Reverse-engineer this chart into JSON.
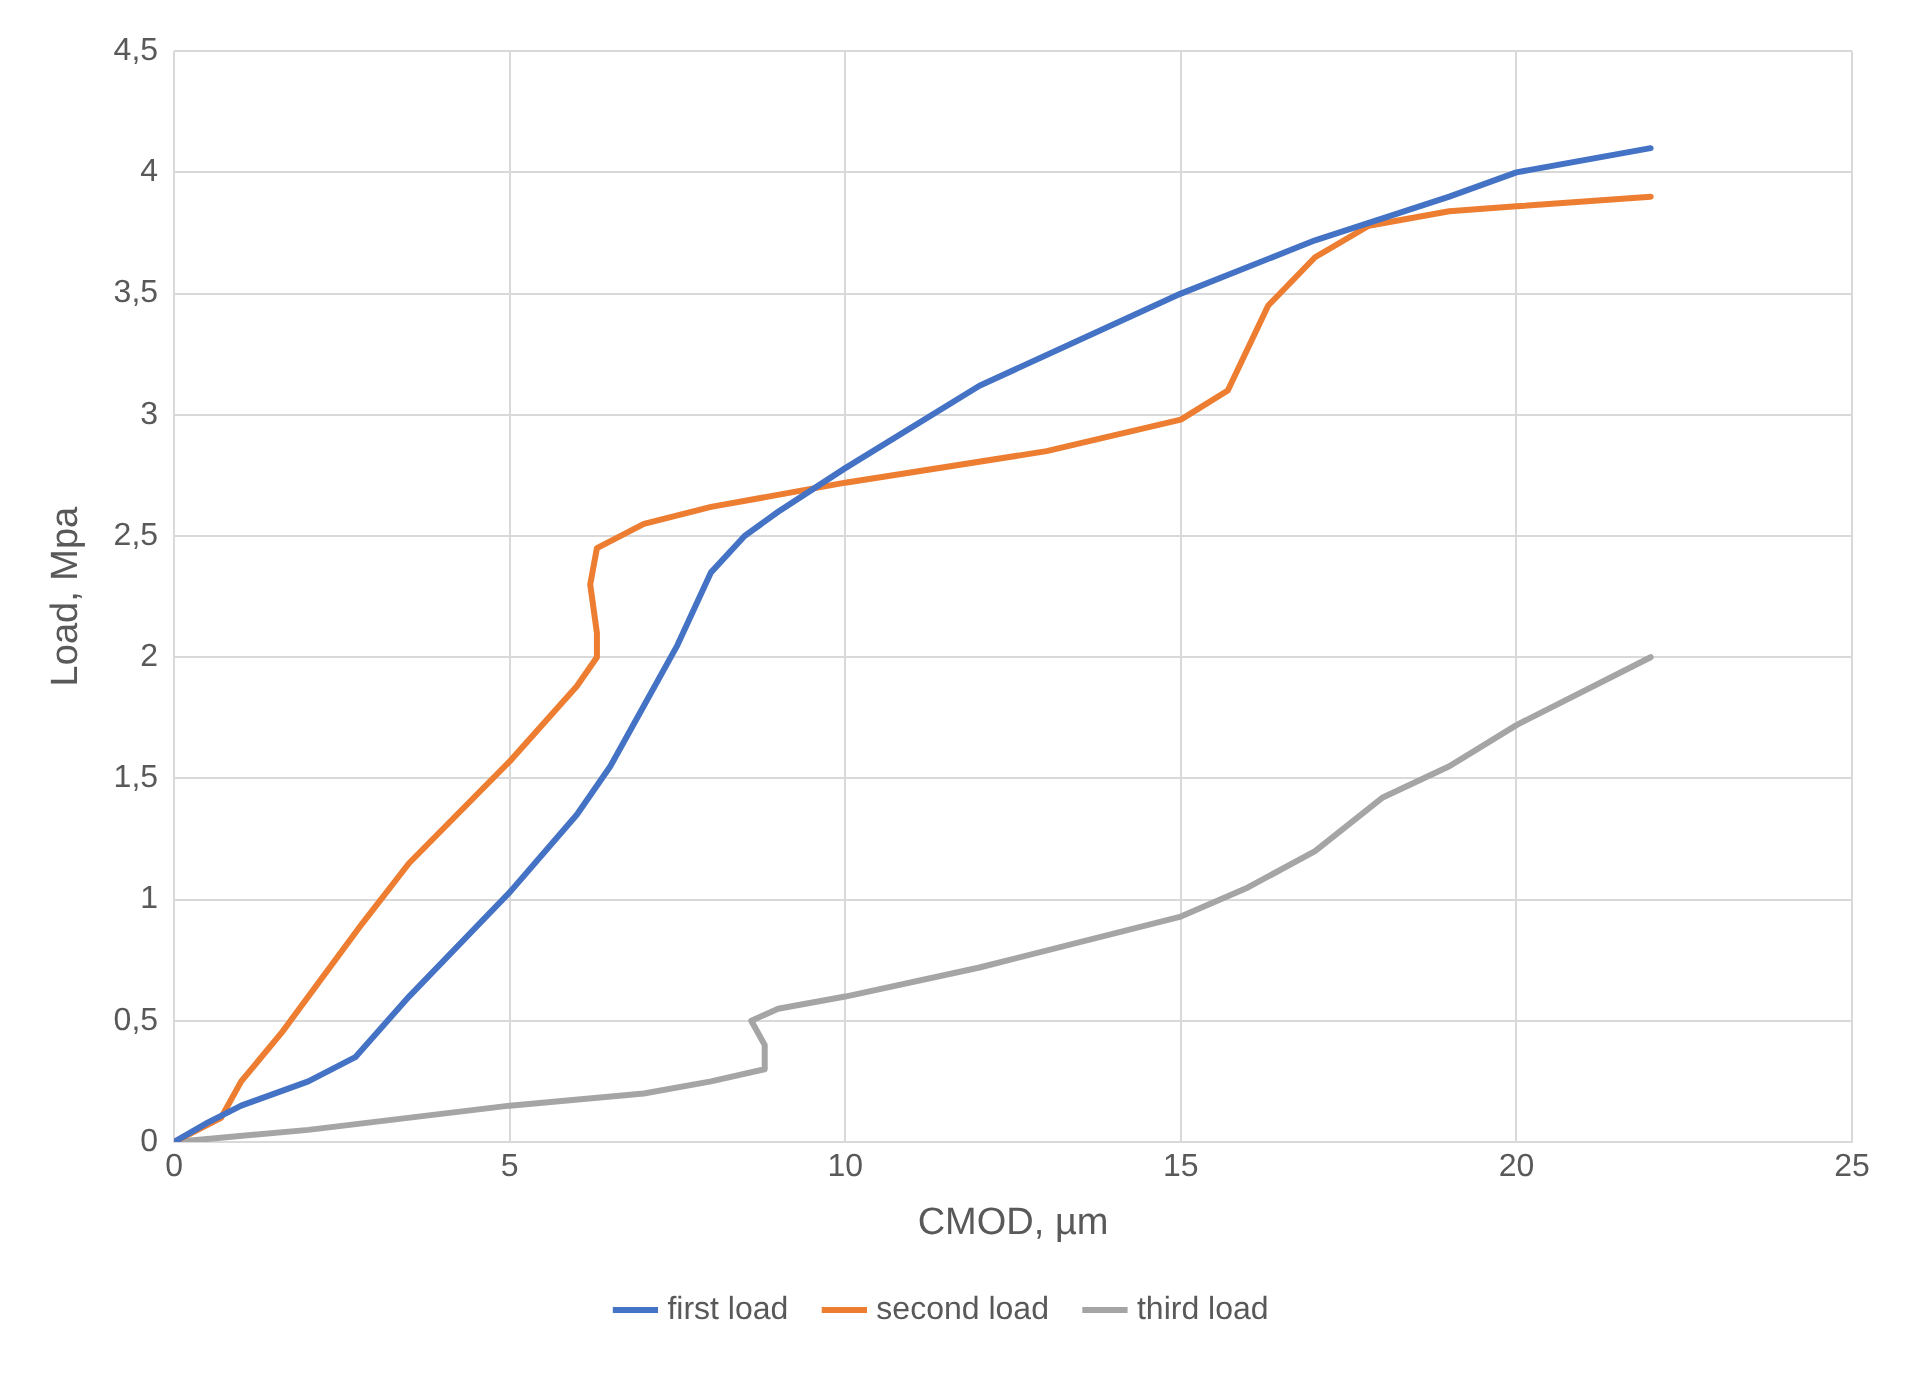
{
  "chart_data": {
    "type": "line",
    "xlabel": "CMOD, µm",
    "ylabel": "Load, Mpa",
    "xlim": [
      0,
      25
    ],
    "xticks": [
      0,
      5,
      10,
      15,
      20,
      25
    ],
    "ylim": [
      0,
      4.5
    ],
    "yticks": [
      0,
      {
        "value": 0.5,
        "label": "0,5"
      },
      1,
      {
        "value": 1.5,
        "label": "1,5"
      },
      2,
      {
        "value": 2.5,
        "label": "2,5"
      },
      3,
      {
        "value": 3.5,
        "label": "3,5"
      },
      4,
      {
        "value": 4.5,
        "label": "4,5"
      }
    ],
    "grid": true,
    "legend": "bottom",
    "marker": "none",
    "line_style": "solid",
    "series": [
      {
        "name": "first load",
        "color": "#4472c4",
        "x": [
          0,
          0.5,
          1,
          2,
          2.7,
          3.5,
          5,
          6,
          6.5,
          7,
          7.5,
          8,
          8.5,
          9,
          10,
          12,
          15,
          17,
          19,
          20,
          22
        ],
        "values": [
          0,
          0.08,
          0.15,
          0.25,
          0.35,
          0.6,
          1.03,
          1.35,
          1.55,
          1.8,
          2.05,
          2.35,
          2.5,
          2.6,
          2.78,
          3.12,
          3.5,
          3.72,
          3.9,
          4.0,
          4.1
        ]
      },
      {
        "name": "second load",
        "color": "#ed7d31",
        "x": [
          0,
          0.7,
          1,
          1.6,
          2.8,
          3.5,
          5,
          6,
          6.3,
          6.3,
          6.2,
          6.3,
          7,
          8,
          10,
          13,
          15,
          15.7,
          16.3,
          17,
          17.8,
          19,
          20,
          22
        ],
        "values": [
          0,
          0.1,
          0.25,
          0.45,
          0.9,
          1.15,
          1.57,
          1.88,
          2.0,
          2.1,
          2.3,
          2.45,
          2.55,
          2.62,
          2.72,
          2.85,
          2.98,
          3.1,
          3.45,
          3.65,
          3.78,
          3.84,
          3.86,
          3.9
        ]
      },
      {
        "name": "third load",
        "color": "#a5a5a5",
        "x": [
          0,
          2,
          5,
          7,
          8,
          8.8,
          8.8,
          8.6,
          9,
          10,
          12,
          15,
          16,
          17,
          18,
          19,
          20,
          22
        ],
        "values": [
          0,
          0.05,
          0.15,
          0.2,
          0.25,
          0.3,
          0.4,
          0.5,
          0.55,
          0.6,
          0.72,
          0.93,
          1.05,
          1.2,
          1.42,
          1.55,
          1.72,
          2.0
        ]
      }
    ]
  }
}
